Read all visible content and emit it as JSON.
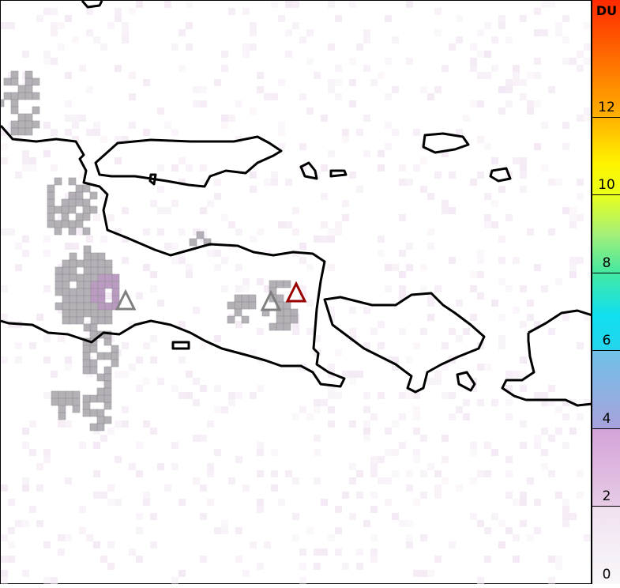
{
  "colorbar": {
    "unit": "DU",
    "ticks": [
      "0",
      "2",
      "4",
      "6",
      "8",
      "10",
      "12"
    ],
    "range": [
      0,
      15
    ],
    "colors": [
      "#faf7fb",
      "#d4a3d8",
      "#7fb8e6",
      "#10e0f0",
      "#7eef80",
      "#fff300",
      "#ff7a00",
      "#ff2a00"
    ]
  },
  "map": {
    "volcano_markers": [
      {
        "color": "#808080"
      },
      {
        "color": "#808080"
      },
      {
        "color": "#990000"
      }
    ],
    "coastline_color": "#000000",
    "retrieval_pixel_color": "#a8a4aa"
  }
}
